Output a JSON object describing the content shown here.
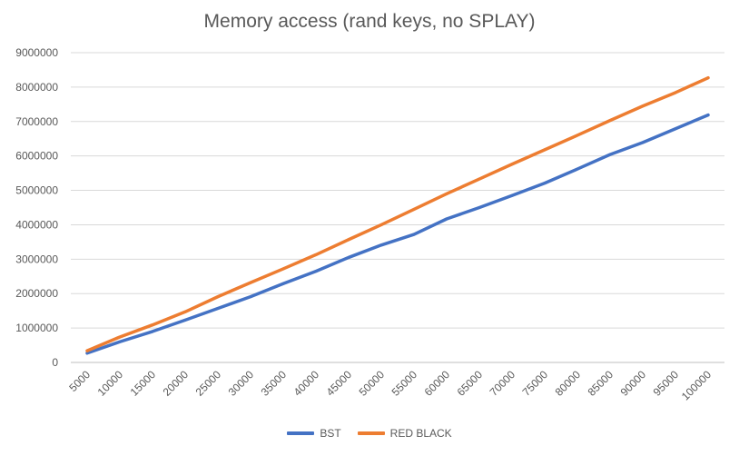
{
  "chart_data": {
    "type": "line",
    "title": "Memory access (rand keys, no SPLAY)",
    "xlabel": "",
    "ylabel": "",
    "ylim": [
      0,
      9000000
    ],
    "yticks": [
      "0",
      "1000000",
      "2000000",
      "3000000",
      "4000000",
      "5000000",
      "6000000",
      "7000000",
      "8000000",
      "9000000"
    ],
    "categories": [
      "5000",
      "10000",
      "15000",
      "20000",
      "25000",
      "30000",
      "35000",
      "40000",
      "45000",
      "50000",
      "55000",
      "60000",
      "65000",
      "70000",
      "75000",
      "80000",
      "85000",
      "90000",
      "95000",
      "100000"
    ],
    "series": [
      {
        "name": "BST",
        "color": "#4472C4",
        "values": [
          270000,
          600000,
          900000,
          1230000,
          1570000,
          1910000,
          2290000,
          2650000,
          3050000,
          3410000,
          3720000,
          4170000,
          4500000,
          4850000,
          5210000,
          5620000,
          6040000,
          6390000,
          6790000,
          7190000
        ]
      },
      {
        "name": "RED BLACK",
        "color": "#ED7D31",
        "values": [
          340000,
          740000,
          1090000,
          1470000,
          1910000,
          2320000,
          2720000,
          3130000,
          3570000,
          4000000,
          4450000,
          4900000,
          5330000,
          5760000,
          6180000,
          6600000,
          7030000,
          7450000,
          7840000,
          8270000
        ]
      }
    ],
    "grid": true,
    "legend": "bottom"
  }
}
